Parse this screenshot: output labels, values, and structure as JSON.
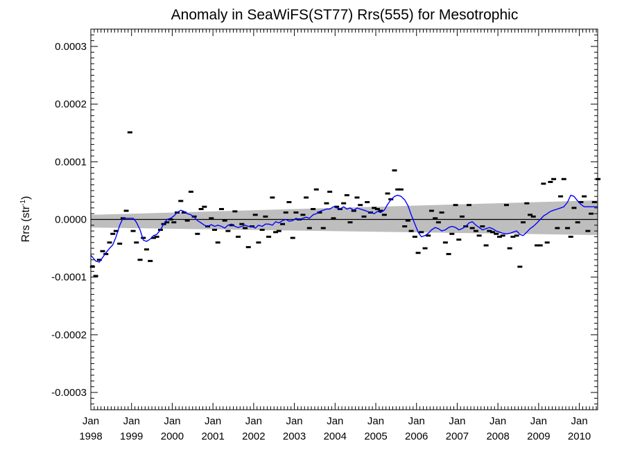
{
  "chart_data": {
    "type": "scatter",
    "title": "Anomaly in SeaWiFS(ST77) Rrs(555) for Mesotrophic",
    "ylabel": "Rrs (str",
    "ylabel_sup": "-1",
    "ylabel_close": ")",
    "xlabel": "",
    "xlim": [
      1998.0,
      2010.45
    ],
    "ylim": [
      -0.00033,
      0.00033
    ],
    "y_ticks": [
      -0.0003,
      -0.0002,
      -0.0001,
      0.0,
      0.0001,
      0.0002,
      0.0003
    ],
    "y_tick_labels": [
      "-0.0003",
      "-0.0002",
      "-0.0001",
      "0.0000",
      "0.0001",
      "0.0002",
      "0.0003"
    ],
    "x_ticks": [
      1998,
      1999,
      2000,
      2001,
      2002,
      2003,
      2004,
      2005,
      2006,
      2007,
      2008,
      2009,
      2010
    ],
    "x_tick_month_labels": [
      "Jan",
      "Jan",
      "Jan",
      "Jan",
      "Jan",
      "Jan",
      "Jan",
      "Jan",
      "Jan",
      "Jan",
      "Jan",
      "Jan",
      "Jan"
    ],
    "x_tick_year_labels": [
      "1998",
      "1999",
      "2000",
      "2001",
      "2002",
      "2003",
      "2004",
      "2005",
      "2006",
      "2007",
      "2008",
      "2009",
      "2010"
    ],
    "zero_line": 0.0,
    "grid": false,
    "colors": {
      "monthly": "#000000",
      "smoothed": "#0000ff",
      "trend_band": "#bebebe",
      "zero_line": "#000000"
    },
    "series": [
      {
        "kind": "monthly_anomaly_markers",
        "x": [
          1998.04,
          1998.12,
          1998.21,
          1998.29,
          1998.37,
          1998.46,
          1998.54,
          1998.62,
          1998.71,
          1998.79,
          1998.87,
          1998.96,
          1999.04,
          1999.12,
          1999.21,
          1999.29,
          1999.37,
          1999.46,
          1999.54,
          1999.62,
          1999.71,
          1999.79,
          1999.87,
          1999.96,
          2000.04,
          2000.12,
          2000.21,
          2000.29,
          2000.37,
          2000.46,
          2000.54,
          2000.62,
          2000.71,
          2000.79,
          2000.87,
          2000.96,
          2001.04,
          2001.12,
          2001.21,
          2001.29,
          2001.37,
          2001.46,
          2001.54,
          2001.62,
          2001.71,
          2001.79,
          2001.87,
          2001.96,
          2002.04,
          2002.12,
          2002.21,
          2002.29,
          2002.37,
          2002.46,
          2002.54,
          2002.62,
          2002.71,
          2002.79,
          2002.87,
          2002.96,
          2003.04,
          2003.12,
          2003.21,
          2003.29,
          2003.37,
          2003.46,
          2003.54,
          2003.62,
          2003.71,
          2003.79,
          2003.87,
          2003.96,
          2004.04,
          2004.12,
          2004.21,
          2004.29,
          2004.37,
          2004.46,
          2004.54,
          2004.62,
          2004.71,
          2004.79,
          2004.87,
          2004.96,
          2005.04,
          2005.12,
          2005.21,
          2005.29,
          2005.37,
          2005.46,
          2005.54,
          2005.62,
          2005.71,
          2005.79,
          2005.87,
          2005.96,
          2006.04,
          2006.12,
          2006.21,
          2006.29,
          2006.37,
          2006.46,
          2006.54,
          2006.62,
          2006.71,
          2006.79,
          2006.87,
          2006.96,
          2007.04,
          2007.12,
          2007.21,
          2007.29,
          2007.37,
          2007.46,
          2007.54,
          2007.62,
          2007.71,
          2007.79,
          2007.87,
          2007.96,
          2008.04,
          2008.12,
          2008.21,
          2008.29,
          2008.37,
          2008.46,
          2008.54,
          2008.62,
          2008.71,
          2008.79,
          2008.87,
          2008.96,
          2009.04,
          2009.12,
          2009.21,
          2009.29,
          2009.37,
          2009.46,
          2009.54,
          2009.62,
          2009.71,
          2009.79,
          2009.87,
          2009.96,
          2010.04,
          2010.12,
          2010.21,
          2010.29,
          2010.37,
          2010.46
        ],
        "y": [
          -8.2e-05,
          -9.8e-05,
          -7e-05,
          -5.5e-05,
          -6e-05,
          -4e-05,
          -2.5e-05,
          -2e-05,
          -4.2e-05,
          2e-06,
          1.5e-05,
          0.000151,
          -2e-05,
          -4e-05,
          -7e-05,
          -3.2e-05,
          -5.2e-05,
          -7.2e-05,
          -3.2e-05,
          -3e-05,
          -1.8e-05,
          -8e-06,
          -5e-06,
          0.0,
          -5e-06,
          1.2e-05,
          3.2e-05,
          1.2e-05,
          -2e-06,
          4.8e-05,
          5e-06,
          -2.5e-05,
          1.8e-05,
          2.2e-05,
          -1.2e-05,
          2e-06,
          -1.8e-05,
          -4e-05,
          1.8e-05,
          -2e-06,
          -2e-05,
          -1e-05,
          1.4e-05,
          -3e-05,
          -8e-06,
          -1.5e-05,
          -4.8e-05,
          -1.2e-05,
          8e-06,
          -4e-05,
          -1.8e-05,
          5e-06,
          -3e-05,
          3.8e-05,
          -2.2e-05,
          -2e-05,
          -8e-06,
          1.2e-05,
          3e-05,
          -3.2e-05,
          1.2e-05,
          0.0,
          8e-06,
          3.8e-05,
          -1.5e-05,
          1.8e-05,
          5.2e-05,
          1.2e-05,
          -1.5e-05,
          2.8e-05,
          4.8e-05,
          2e-06,
          2.2e-05,
          1.8e-05,
          2.8e-05,
          4.2e-05,
          -5e-06,
          1.5e-05,
          3.8e-05,
          2.5e-05,
          5e-06,
          3e-05,
          1.2e-05,
          2e-05,
          1.8e-05,
          1.5e-05,
          8e-06,
          4.5e-05,
          3.5e-05,
          8.5e-05,
          5.2e-05,
          5.2e-05,
          -1.2e-05,
          -2e-06,
          -2e-05,
          -3e-05,
          -5.8e-05,
          -2.2e-05,
          -5e-05,
          -2.8e-05,
          1.5e-05,
          2e-06,
          -5e-06,
          1.2e-05,
          -4e-05,
          -6e-05,
          -2.5e-05,
          2.5e-05,
          -3.5e-05,
          5e-06,
          -1.2e-05,
          2.5e-05,
          -1.5e-05,
          -2e-05,
          -2.8e-05,
          -1.2e-05,
          -4.5e-05,
          -2e-05,
          -2.2e-05,
          -2.5e-05,
          -3e-05,
          -2.8e-05,
          2.5e-05,
          -5e-05,
          -3e-05,
          -2.8e-05,
          -8.2e-05,
          -5e-06,
          2.8e-05,
          8e-06,
          5e-06,
          -4.5e-05,
          -4.5e-05,
          6.2e-05,
          -4e-05,
          6.5e-05,
          7e-05,
          -1.5e-05,
          4e-05,
          7e-05,
          -1.5e-05,
          -3e-05,
          2e-05,
          -5e-06,
          3e-05,
          4e-05,
          -2e-05,
          1e-05,
          3e-05,
          7e-05
        ]
      },
      {
        "kind": "smoothed_anomaly",
        "x": [
          1998.0,
          1998.12,
          1998.21,
          1998.29,
          1998.37,
          1998.46,
          1998.54,
          1998.62,
          1998.71,
          1998.79,
          1998.87,
          1998.96,
          1999.04,
          1999.12,
          1999.21,
          1999.29,
          1999.37,
          1999.46,
          1999.54,
          1999.62,
          1999.71,
          1999.79,
          1999.87,
          1999.96,
          2000.04,
          2000.12,
          2000.21,
          2000.29,
          2000.37,
          2000.46,
          2000.54,
          2000.62,
          2000.71,
          2000.79,
          2000.87,
          2000.96,
          2001.04,
          2001.12,
          2001.21,
          2001.29,
          2001.37,
          2001.46,
          2001.54,
          2001.62,
          2001.71,
          2001.79,
          2001.87,
          2001.96,
          2002.04,
          2002.12,
          2002.21,
          2002.29,
          2002.37,
          2002.46,
          2002.54,
          2002.62,
          2002.71,
          2002.79,
          2002.87,
          2002.96,
          2003.04,
          2003.12,
          2003.21,
          2003.29,
          2003.37,
          2003.46,
          2003.54,
          2003.62,
          2003.71,
          2003.79,
          2003.87,
          2003.96,
          2004.04,
          2004.12,
          2004.21,
          2004.29,
          2004.37,
          2004.46,
          2004.54,
          2004.62,
          2004.71,
          2004.79,
          2004.87,
          2004.96,
          2005.04,
          2005.12,
          2005.21,
          2005.29,
          2005.37,
          2005.46,
          2005.54,
          2005.62,
          2005.71,
          2005.79,
          2005.87,
          2005.96,
          2006.04,
          2006.12,
          2006.21,
          2006.29,
          2006.37,
          2006.46,
          2006.54,
          2006.62,
          2006.71,
          2006.79,
          2006.87,
          2006.96,
          2007.04,
          2007.12,
          2007.21,
          2007.29,
          2007.37,
          2007.46,
          2007.54,
          2007.62,
          2007.71,
          2007.79,
          2007.87,
          2007.96,
          2008.04,
          2008.12,
          2008.21,
          2008.29,
          2008.37,
          2008.46,
          2008.54,
          2008.62,
          2008.71,
          2008.79,
          2008.87,
          2008.96,
          2009.04,
          2009.12,
          2009.21,
          2009.29,
          2009.37,
          2009.46,
          2009.54,
          2009.62,
          2009.71,
          2009.79,
          2009.87,
          2009.96,
          2010.04,
          2010.12,
          2010.21,
          2010.29,
          2010.37,
          2010.45
        ],
        "y": [
          -6.2e-05,
          -7.2e-05,
          -7.4e-05,
          -6.6e-05,
          -5.8e-05,
          -5e-05,
          -4.4e-05,
          -3e-05,
          -1e-05,
          2e-06,
          2e-06,
          2e-06,
          2e-06,
          -5e-06,
          -1.8e-05,
          -3.6e-05,
          -3.8e-05,
          -3.4e-05,
          -2.8e-05,
          -2.6e-05,
          -1.8e-05,
          -8e-06,
          0.0,
          2e-06,
          6e-06,
          1.2e-05,
          1.6e-05,
          1.4e-05,
          1e-05,
          8e-06,
          4e-06,
          -2e-06,
          -6e-06,
          -1e-05,
          -1.2e-05,
          -9e-06,
          -1.2e-05,
          -1e-05,
          -1.2e-05,
          -1.5e-05,
          -1e-05,
          -8e-06,
          -1.2e-05,
          -1.4e-05,
          -1.2e-05,
          -1e-05,
          -1.2e-05,
          -1.2e-05,
          -1.5e-05,
          -1e-05,
          -1.2e-05,
          -8e-06,
          -8e-06,
          -1e-05,
          -4e-06,
          -6e-06,
          -2e-06,
          0.0,
          -3e-06,
          -2e-06,
          2e-06,
          0.0,
          2e-06,
          4e-06,
          2e-06,
          8e-06,
          1e-05,
          1.4e-05,
          1.6e-05,
          1.8e-05,
          1.8e-05,
          2.2e-05,
          2e-05,
          1.8e-05,
          2.2e-05,
          1.8e-05,
          2e-05,
          1.6e-05,
          2e-05,
          1.8e-05,
          1.6e-05,
          1.4e-05,
          1.2e-05,
          1e-05,
          1.4e-05,
          1.2e-05,
          1.6e-05,
          2.6e-05,
          3.4e-05,
          4e-05,
          4.2e-05,
          4e-05,
          3.4e-05,
          2.4e-05,
          8e-06,
          -8e-06,
          -2.2e-05,
          -3e-05,
          -2.8e-05,
          -2.4e-05,
          -1.8e-05,
          -1.4e-05,
          -1.6e-05,
          -2e-05,
          -1.8e-05,
          -1.4e-05,
          -1.2e-05,
          -1.4e-05,
          -1.8e-05,
          -1.6e-05,
          -1.2e-05,
          -6e-06,
          -4e-06,
          -1e-05,
          -1.4e-05,
          -1.8e-05,
          -1.6e-05,
          -1.4e-05,
          -1.6e-05,
          -2e-05,
          -2.2e-05,
          -2.4e-05,
          -2.5e-05,
          -2.4e-05,
          -2.2e-05,
          -2e-05,
          -2.6e-05,
          -2.8e-05,
          -2.2e-05,
          -1.6e-05,
          -1.2e-05,
          -6e-06,
          0.0,
          6e-06,
          1e-05,
          1.4e-05,
          1.6e-05,
          1.8e-05,
          2e-05,
          2.2e-05,
          3e-05,
          4.2e-05,
          4e-05,
          3.2e-05,
          2.6e-05,
          2.2e-05,
          2.2e-05,
          2.2e-05,
          2.2e-05,
          2.2e-05
        ]
      },
      {
        "kind": "trend_confidence_band",
        "x": [
          1998.0,
          2010.45
        ],
        "upper": [
          8e-06,
          3.3e-05
        ],
        "lower": [
          -1.4e-05,
          -2.7e-05
        ]
      }
    ]
  }
}
